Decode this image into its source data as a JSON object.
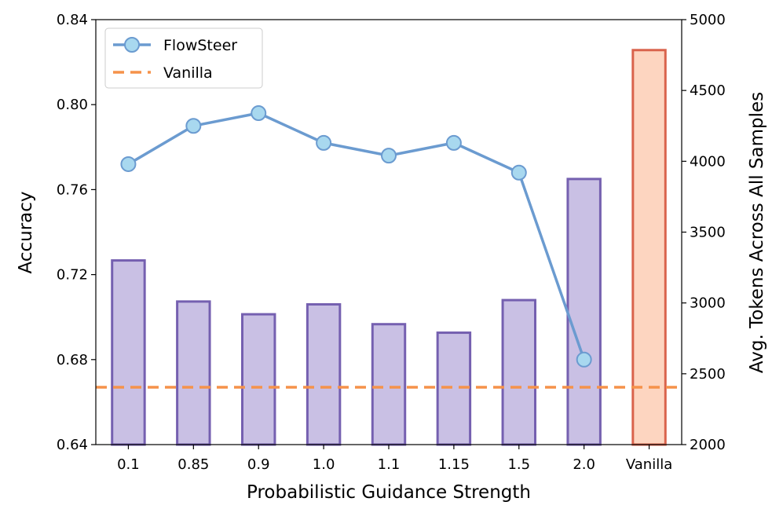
{
  "chart_data": {
    "type": "combo",
    "categories": [
      "0.1",
      "0.85",
      "0.9",
      "1.0",
      "1.1",
      "1.15",
      "1.5",
      "2.0",
      "Vanilla"
    ],
    "xlabel": "Probabilistic Guidance Strength",
    "ylabel": "Accuracy",
    "y2label": "Avg. Tokens Across All Samples",
    "ylim": [
      0.64,
      0.84
    ],
    "yticks": [
      0.64,
      0.68,
      0.72,
      0.76,
      {
        "value": 0.8,
        "label": "0.80"
      },
      0.84
    ],
    "y2lim": [
      2000,
      5000
    ],
    "y2ticks": [
      2000,
      2500,
      3000,
      3500,
      4000,
      4500,
      5000
    ],
    "legend": "upper left",
    "bars": {
      "axis": "y2",
      "values": [
        3300,
        3010,
        2920,
        2990,
        2850,
        2790,
        3020,
        3875,
        4785
      ],
      "colors": [
        "#c9c0e4",
        "#c9c0e4",
        "#c9c0e4",
        "#c9c0e4",
        "#c9c0e4",
        "#c9c0e4",
        "#c9c0e4",
        "#c9c0e4",
        "#fdd5c0"
      ],
      "edgecolors": [
        "#7560b0",
        "#7560b0",
        "#7560b0",
        "#7560b0",
        "#7560b0",
        "#7560b0",
        "#7560b0",
        "#7560b0",
        "#d9634c"
      ]
    },
    "series": [
      {
        "name": "FlowSteer",
        "type": "line",
        "color": "#6b9bd0",
        "marker_color": "#a8d8ef",
        "values": [
          0.772,
          0.79,
          0.796,
          0.782,
          0.776,
          0.782,
          0.768,
          0.68,
          null
        ]
      },
      {
        "name": "Vanilla",
        "type": "hline",
        "color": "#f5924a",
        "value": 0.667
      }
    ]
  }
}
